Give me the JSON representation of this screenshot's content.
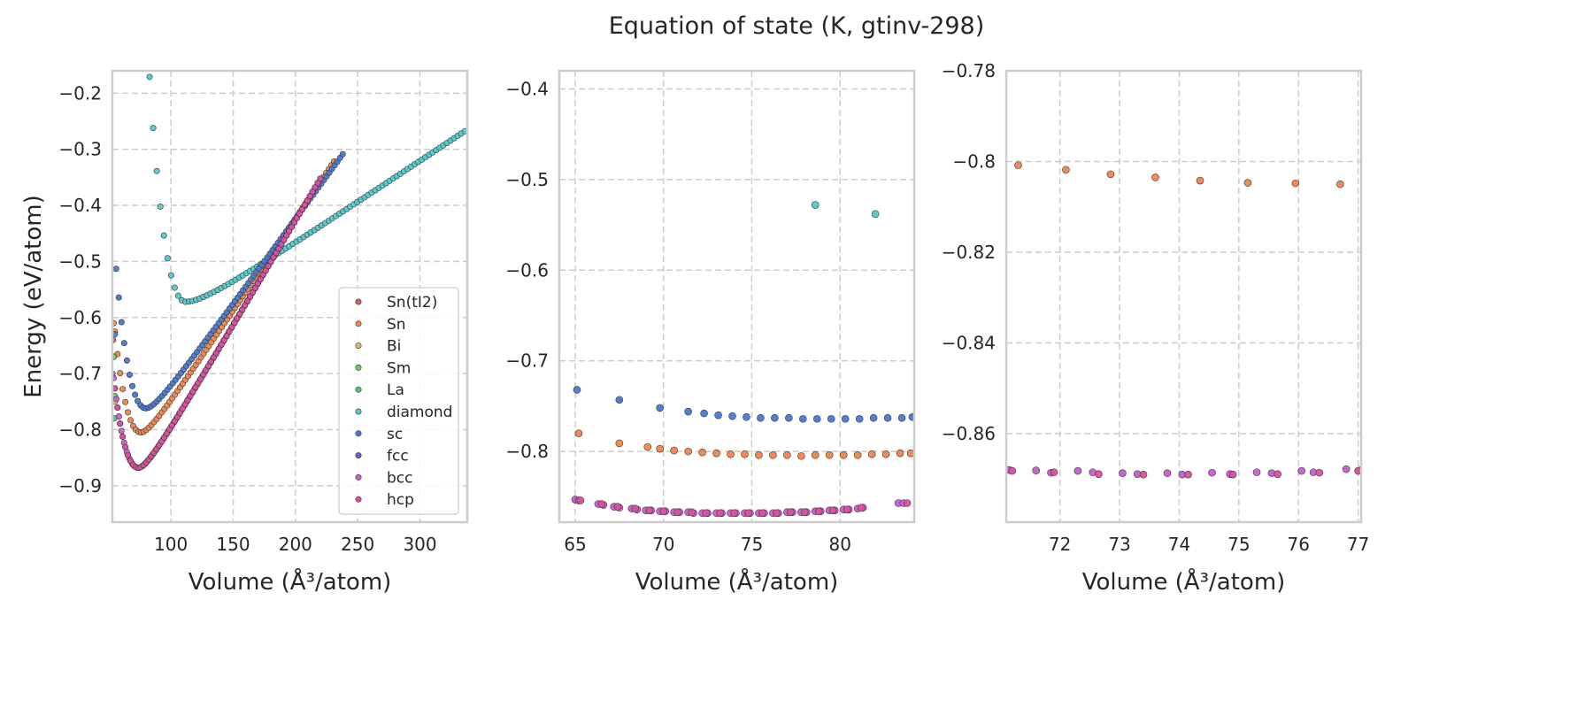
{
  "title": "Equation of state (K, gtinv-298)",
  "chart_data": [
    {
      "type": "scatter",
      "xlabel": "Volume (Å³/atom)",
      "ylabel": "Energy (eV/atom)",
      "xlim": [
        53,
        338
      ],
      "ylim": [
        -0.965,
        -0.16
      ],
      "xticks": [
        100,
        150,
        200,
        250,
        300
      ],
      "yticks": [
        -0.9,
        -0.8,
        -0.7,
        -0.6,
        -0.5,
        -0.4,
        -0.3,
        -0.2
      ],
      "grid": true,
      "legend": {
        "position": "lower-right",
        "entries": [
          "Sn(tI2)",
          "Sn",
          "Bi",
          "Sm",
          "La",
          "diamond",
          "sc",
          "fcc",
          "bcc",
          "hcp"
        ]
      },
      "series": [
        {
          "name": "Sn(tI2)",
          "color": "#d65f5f",
          "points": [
            [
              53.5,
              -0.64
            ]
          ]
        },
        {
          "name": "Sn",
          "color": "#ee854a",
          "curve": {
            "v0": 76,
            "e0": -0.805,
            "vmin": 55,
            "vmax": 231,
            "n": 85,
            "slope": 0.0033,
            "bend": 9,
            "inner": -0.61
          }
        },
        {
          "name": "Bi",
          "color": "#d5bb67",
          "points": [
            [
              54,
              -0.67
            ],
            [
              55,
              -0.75
            ]
          ]
        },
        {
          "name": "Sm",
          "color": "#6acc64",
          "points": [
            [
              54,
              -0.67
            ],
            [
              55,
              -0.74
            ]
          ]
        },
        {
          "name": "La",
          "color": "#4ec27a",
          "points": [
            [
              54.5,
              -0.78
            ]
          ]
        },
        {
          "name": "diamond",
          "color": "#4fc9cb",
          "curve": {
            "v0": 112,
            "e0": -0.572,
            "vmin": 80,
            "vmax": 336,
            "n": 90,
            "slope": 0.00148,
            "bend": 20
          }
        },
        {
          "name": "sc",
          "color": "#4878d0",
          "curve": {
            "v0": 80,
            "e0": -0.762,
            "vmin": 56,
            "vmax": 238,
            "n": 85,
            "slope": 0.00305,
            "bend": 10,
            "inner": -0.63
          }
        },
        {
          "name": "fcc",
          "color": "#6b5fd0",
          "curve": {
            "v0": 74,
            "e0": -0.868,
            "vmin": 55,
            "vmax": 220,
            "n": 80,
            "slope": 0.00375,
            "bend": 9
          }
        },
        {
          "name": "bcc",
          "color": "#c65fd0",
          "curve": {
            "v0": 74,
            "e0": -0.868,
            "vmin": 54,
            "vmax": 220,
            "n": 80,
            "slope": 0.00375,
            "bend": 9,
            "inner": -0.7
          }
        },
        {
          "name": "hcp",
          "color": "#dc4f9e",
          "curve": {
            "v0": 74,
            "e0": -0.868,
            "vmin": 55,
            "vmax": 220,
            "n": 80,
            "slope": 0.00375,
            "bend": 9
          }
        }
      ]
    },
    {
      "type": "scatter",
      "xlabel": "Volume (Å³/atom)",
      "ylabel": "",
      "xlim": [
        64.1,
        84.2
      ],
      "ylim": [
        -0.878,
        -0.38
      ],
      "xticks": [
        65,
        70,
        75,
        80
      ],
      "yticks": [
        -0.8,
        -0.7,
        -0.6,
        -0.5,
        -0.4
      ],
      "grid": true,
      "series": [
        {
          "name": "diamond",
          "color": "#4fc9cb",
          "points": [
            [
              78.6,
              -0.528
            ],
            [
              82,
              -0.538
            ]
          ]
        },
        {
          "name": "sc",
          "color": "#4878d0",
          "points": [
            [
              65.1,
              -0.732
            ],
            [
              67.5,
              -0.743
            ],
            [
              69.8,
              -0.752
            ],
            [
              71.4,
              -0.756
            ],
            [
              72.3,
              -0.758
            ],
            [
              73.1,
              -0.76
            ],
            [
              73.9,
              -0.761
            ],
            [
              74.7,
              -0.762
            ],
            [
              75.5,
              -0.763
            ],
            [
              76.3,
              -0.763
            ],
            [
              77.1,
              -0.763
            ],
            [
              77.9,
              -0.764
            ],
            [
              78.7,
              -0.764
            ],
            [
              79.5,
              -0.764
            ],
            [
              80.3,
              -0.764
            ],
            [
              81.1,
              -0.764
            ],
            [
              81.9,
              -0.763
            ],
            [
              82.7,
              -0.763
            ],
            [
              83.5,
              -0.763
            ],
            [
              84.1,
              -0.762
            ]
          ]
        },
        {
          "name": "Sn",
          "color": "#ee854a",
          "points": [
            [
              65.2,
              -0.78
            ],
            [
              67.5,
              -0.791
            ],
            [
              69.1,
              -0.795
            ],
            [
              69.8,
              -0.797
            ],
            [
              70.6,
              -0.799
            ],
            [
              71.4,
              -0.8
            ],
            [
              72.2,
              -0.801
            ],
            [
              73,
              -0.802
            ],
            [
              73.8,
              -0.803
            ],
            [
              74.6,
              -0.803
            ],
            [
              75.4,
              -0.804
            ],
            [
              76.2,
              -0.804
            ],
            [
              77,
              -0.804
            ],
            [
              77.8,
              -0.805
            ],
            [
              78.6,
              -0.804
            ],
            [
              79.4,
              -0.804
            ],
            [
              80.2,
              -0.804
            ],
            [
              81,
              -0.804
            ],
            [
              81.8,
              -0.803
            ],
            [
              82.6,
              -0.803
            ],
            [
              83.4,
              -0.802
            ],
            [
              84,
              -0.802
            ]
          ]
        },
        {
          "name": "bcc",
          "color": "#c65fd0",
          "points": [
            [
              65,
              -0.853
            ],
            [
              65.2,
              -0.854
            ],
            [
              66.3,
              -0.858
            ],
            [
              66.6,
              -0.859
            ],
            [
              67.2,
              -0.861
            ],
            [
              67.5,
              -0.862
            ],
            [
              68.2,
              -0.863
            ],
            [
              68.5,
              -0.864
            ],
            [
              69,
              -0.865
            ],
            [
              69.3,
              -0.865
            ],
            [
              69.8,
              -0.866
            ],
            [
              70.1,
              -0.866
            ],
            [
              70.6,
              -0.867
            ],
            [
              70.9,
              -0.867
            ],
            [
              71.4,
              -0.867
            ],
            [
              71.7,
              -0.868
            ],
            [
              72.2,
              -0.868
            ],
            [
              72.5,
              -0.868
            ],
            [
              73,
              -0.868
            ],
            [
              73.3,
              -0.868
            ],
            [
              73.8,
              -0.868
            ],
            [
              74.1,
              -0.868
            ],
            [
              74.6,
              -0.868
            ],
            [
              74.9,
              -0.868
            ],
            [
              75.4,
              -0.868
            ],
            [
              75.7,
              -0.868
            ],
            [
              76.2,
              -0.868
            ],
            [
              76.5,
              -0.868
            ],
            [
              77,
              -0.867
            ],
            [
              77.3,
              -0.867
            ],
            [
              77.8,
              -0.867
            ],
            [
              78.1,
              -0.867
            ],
            [
              78.6,
              -0.866
            ],
            [
              78.9,
              -0.866
            ],
            [
              79.4,
              -0.865
            ],
            [
              79.7,
              -0.865
            ],
            [
              80.2,
              -0.864
            ],
            [
              80.5,
              -0.864
            ],
            [
              81,
              -0.863
            ],
            [
              81.3,
              -0.862
            ],
            [
              83.3,
              -0.857
            ],
            [
              83.6,
              -0.857
            ]
          ]
        },
        {
          "name": "hcp",
          "color": "#dc4f9e",
          "points": [
            [
              65.3,
              -0.854
            ],
            [
              66.5,
              -0.858
            ],
            [
              67.4,
              -0.861
            ],
            [
              68.4,
              -0.863
            ],
            [
              69.2,
              -0.865
            ],
            [
              70,
              -0.866
            ],
            [
              70.8,
              -0.867
            ],
            [
              71.6,
              -0.867
            ],
            [
              72.4,
              -0.868
            ],
            [
              73.2,
              -0.868
            ],
            [
              74,
              -0.868
            ],
            [
              74.8,
              -0.868
            ],
            [
              75.6,
              -0.868
            ],
            [
              76.4,
              -0.868
            ],
            [
              77.2,
              -0.867
            ],
            [
              78,
              -0.867
            ],
            [
              78.8,
              -0.866
            ],
            [
              79.6,
              -0.865
            ],
            [
              80.4,
              -0.864
            ],
            [
              81.2,
              -0.862
            ],
            [
              83.8,
              -0.857
            ]
          ]
        }
      ]
    },
    {
      "type": "scatter",
      "xlabel": "Volume (Å³/atom)",
      "ylabel": "",
      "xlim": [
        71.1,
        77.05
      ],
      "ylim": [
        -0.8795,
        -0.78
      ],
      "xticks": [
        72,
        73,
        74,
        75,
        76,
        77
      ],
      "yticks": [
        -0.86,
        -0.84,
        -0.82,
        -0.8,
        -0.78
      ],
      "grid": true,
      "series": [
        {
          "name": "Sn",
          "color": "#ee854a",
          "points": [
            [
              71.3,
              -0.8008
            ],
            [
              72.1,
              -0.8018
            ],
            [
              72.85,
              -0.8028
            ],
            [
              73.6,
              -0.8035
            ],
            [
              74.35,
              -0.8042
            ],
            [
              75.15,
              -0.8047
            ],
            [
              75.95,
              -0.8048
            ],
            [
              76.7,
              -0.805
            ]
          ]
        },
        {
          "name": "bcc",
          "color": "#c65fd0",
          "points": [
            [
              71.15,
              -0.868
            ],
            [
              71.6,
              -0.8681
            ],
            [
              71.85,
              -0.8686
            ],
            [
              72.3,
              -0.8682
            ],
            [
              72.55,
              -0.8685
            ],
            [
              73.05,
              -0.8687
            ],
            [
              73.3,
              -0.8689
            ],
            [
              73.8,
              -0.8687
            ],
            [
              74.05,
              -0.869
            ],
            [
              74.55,
              -0.8686
            ],
            [
              74.85,
              -0.8689
            ],
            [
              75.3,
              -0.8685
            ],
            [
              75.55,
              -0.8687
            ],
            [
              76.05,
              -0.8682
            ],
            [
              76.25,
              -0.8685
            ],
            [
              76.8,
              -0.8678
            ],
            [
              77.05,
              -0.868
            ]
          ]
        },
        {
          "name": "hcp",
          "color": "#dc4f9e",
          "points": [
            [
              71.2,
              -0.8682
            ],
            [
              71.9,
              -0.8685
            ],
            [
              72.65,
              -0.8689
            ],
            [
              73.4,
              -0.869
            ],
            [
              74.15,
              -0.869
            ],
            [
              74.9,
              -0.869
            ],
            [
              75.65,
              -0.8689
            ],
            [
              76.35,
              -0.8686
            ],
            [
              77,
              -0.8682
            ]
          ]
        }
      ]
    }
  ]
}
